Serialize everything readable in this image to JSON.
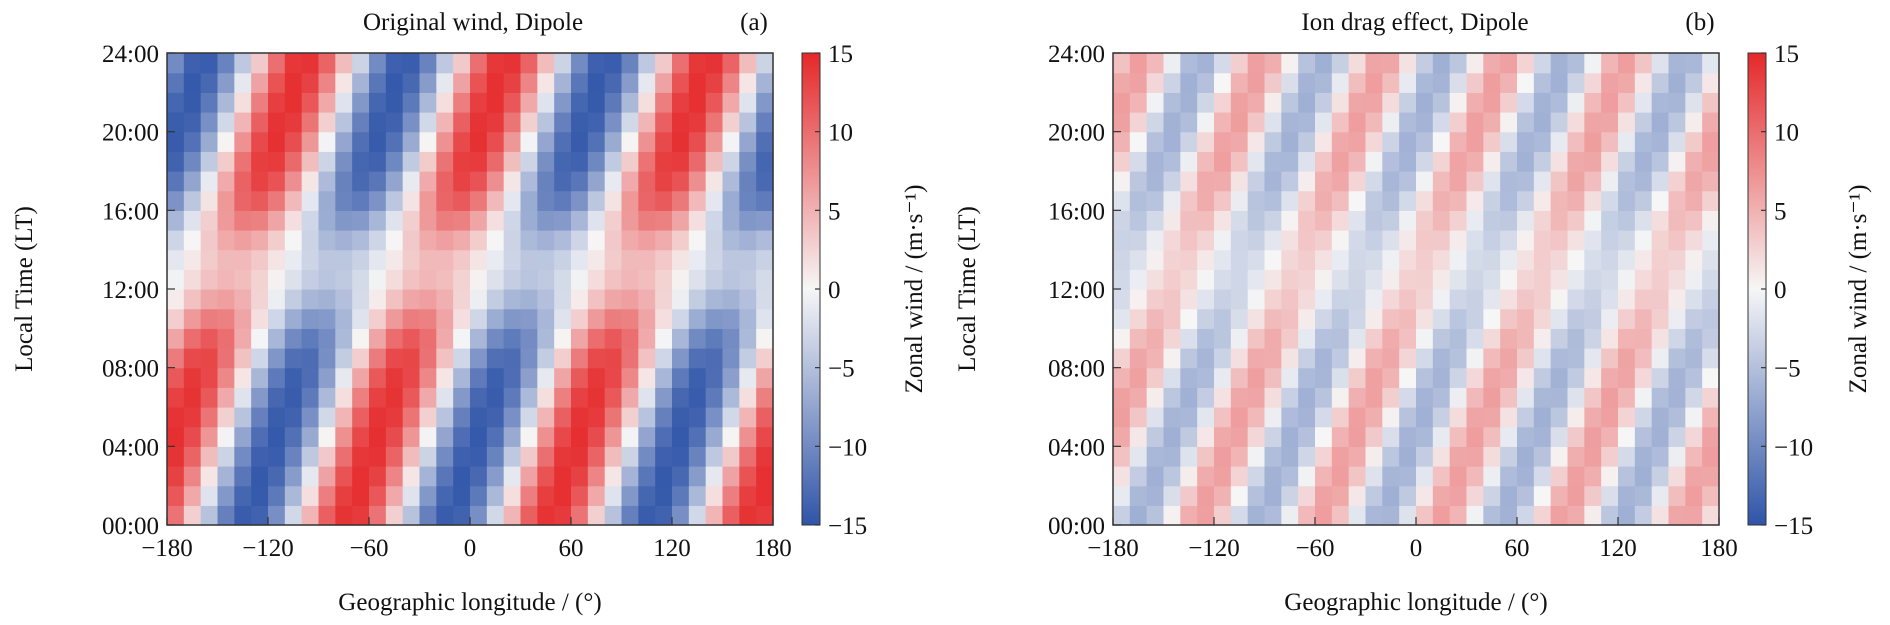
{
  "chart_data": [
    {
      "type": "heatmap",
      "title": "Original wind, Dipole",
      "panel_label": "(a)",
      "xlabel": "Geographic longitude / (°)",
      "ylabel": "Local Time (LT)",
      "colorbar_label": "Zonal wind / (m·s⁻¹)",
      "x_ticks": [
        "−180",
        "−120",
        "−60",
        "0",
        "60",
        "120",
        "180"
      ],
      "y_ticks": [
        "00:00",
        "04:00",
        "08:00",
        "12:00",
        "16:00",
        "20:00",
        "24:00"
      ],
      "colorbar_ticks": [
        "−15",
        "−10",
        "−5",
        "0",
        "5",
        "10",
        "15"
      ],
      "xlim": [
        -180,
        180
      ],
      "ylim": [
        0,
        24
      ],
      "clim": [
        -15,
        15
      ],
      "colormap": {
        "low": "#2f54a8",
        "mid": "#f6f6f6",
        "high": "#e5282a"
      },
      "field": {
        "amplitude": 14.5,
        "wavenumber": 3,
        "phase_slope_deg_per_hour": -12,
        "phase_deg": -50,
        "midday_damping": 0.7
      }
    },
    {
      "type": "heatmap",
      "title": "Ion drag effect, Dipole",
      "panel_label": "(b)",
      "xlabel": "Geographic longitude / (°)",
      "ylabel": "Local Time (LT)",
      "colorbar_label": "Zonal wind / (m·s⁻¹)",
      "x_ticks": [
        "−180",
        "−120",
        "−60",
        "0",
        "60",
        "120",
        "180"
      ],
      "y_ticks": [
        "00:00",
        "04:00",
        "08:00",
        "12:00",
        "16:00",
        "20:00",
        "24:00"
      ],
      "colorbar_ticks": [
        "−15",
        "−10",
        "−5",
        "0",
        "5",
        "10",
        "15"
      ],
      "xlim": [
        -180,
        180
      ],
      "ylim": [
        0,
        24
      ],
      "clim": [
        -15,
        15
      ],
      "colormap": {
        "low": "#2f54a8",
        "mid": "#f6f6f6",
        "high": "#e5282a"
      },
      "field": {
        "amplitude": 6.5,
        "wavenumber": 5,
        "phase_slope_deg_per_hour": -14,
        "phase_deg": 20,
        "midday_damping": 0.55
      }
    }
  ]
}
